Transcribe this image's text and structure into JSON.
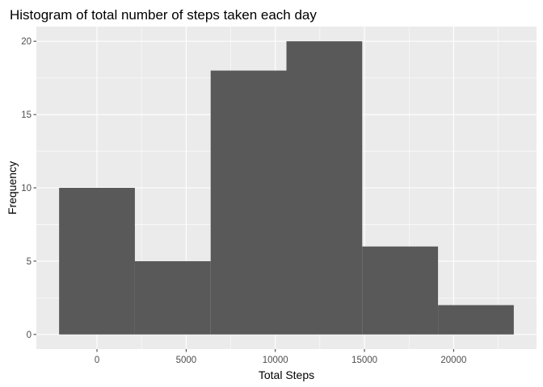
{
  "chart_data": {
    "type": "bar",
    "title": "Histogram of total number of steps taken each day",
    "xlabel": "Total Steps",
    "ylabel": "Frequency",
    "bins": [
      {
        "x0": -2125,
        "x1": 2125,
        "value": 10
      },
      {
        "x0": 2125,
        "x1": 6375,
        "value": 5
      },
      {
        "x0": 6375,
        "x1": 10625,
        "value": 18
      },
      {
        "x0": 10625,
        "x1": 14875,
        "value": 20
      },
      {
        "x0": 14875,
        "x1": 19125,
        "value": 6
      },
      {
        "x0": 19125,
        "x1": 23375,
        "value": 2
      }
    ],
    "xlim": [
      -3400,
      24650
    ],
    "ylim": [
      -1,
      21
    ],
    "x_ticks": [
      0,
      5000,
      10000,
      15000,
      20000
    ],
    "x_tick_labels": [
      "0",
      "5000",
      "10000",
      "15000",
      "20000"
    ],
    "x_minor_ticks": [
      2500,
      7500,
      12500,
      17500,
      22500
    ],
    "y_ticks": [
      0,
      5,
      10,
      15,
      20
    ],
    "y_tick_labels": [
      "0",
      "5",
      "10",
      "15",
      "20"
    ],
    "y_minor_ticks": [
      2.5,
      7.5,
      12.5,
      17.5
    ],
    "grid": true,
    "legend": "none",
    "colors": {
      "panel_background": "#ebebeb",
      "grid_line": "#ffffff",
      "bar_fill": "#595959",
      "tick_text": "#4d4d4d",
      "tick_mark": "#333333"
    }
  }
}
